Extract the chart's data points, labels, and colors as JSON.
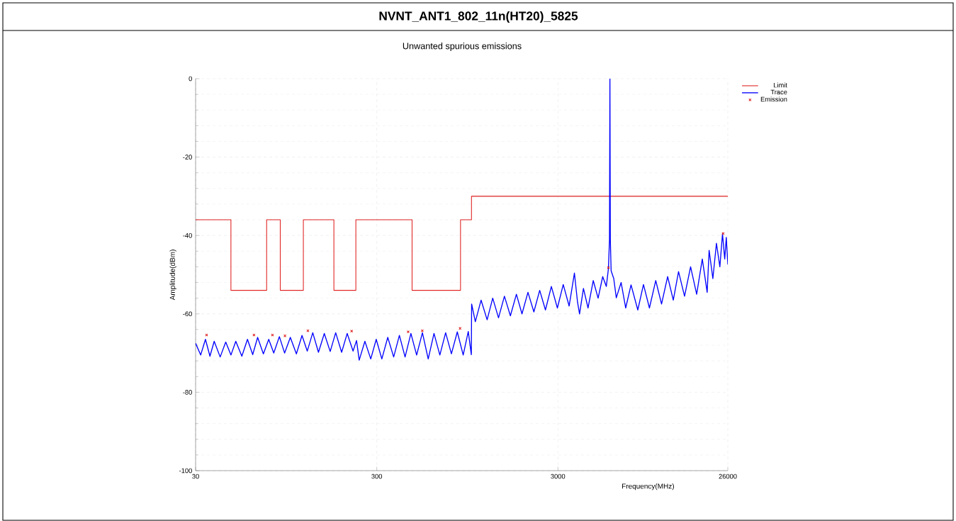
{
  "chart_data": {
    "type": "line",
    "title": "NVNT_ANT1_802_11n(HT20)_5825",
    "subtitle": "Unwanted spurious emissions",
    "xlabel": "Frequency(MHz)",
    "ylabel": "Amplitude(dBm)",
    "log": "x",
    "xlim": [
      30,
      26000
    ],
    "ylim": [
      -100,
      0
    ],
    "xticks": [
      30,
      300,
      3000,
      26000
    ],
    "yticks": [
      -100,
      -80,
      -60,
      -40,
      -20,
      0
    ],
    "grid": true,
    "legend": "top right",
    "series": [
      {
        "name": "Limit",
        "type": "step",
        "color": "#e02020",
        "x": [
          30,
          47,
          74,
          88,
          118,
          174,
          230,
          470,
          870,
          1000,
          26000
        ],
        "values": [
          -36,
          -54,
          -36,
          -54,
          -36,
          -54,
          -36,
          -54,
          -36,
          -30,
          -30
        ]
      },
      {
        "name": "Trace",
        "color": "#0000ff",
        "x": [
          30,
          32,
          34,
          36,
          38,
          41,
          44,
          47,
          50,
          54,
          58,
          62,
          66,
          71,
          76,
          81,
          87,
          93,
          100,
          108,
          116,
          124,
          133,
          143,
          154,
          166,
          178,
          192,
          206,
          222,
          232,
          240,
          258,
          278,
          298,
          320,
          345,
          372,
          400,
          430,
          463,
          498,
          536,
          577,
          621,
          669,
          720,
          775,
          835,
          900,
          960,
          998,
          1002,
          1050,
          1130,
          1220,
          1310,
          1410,
          1520,
          1640,
          1770,
          1900,
          2050,
          2210,
          2380,
          2560,
          2760,
          2980,
          3210,
          3460,
          3700,
          3850,
          3950,
          4150,
          4400,
          4700,
          5000,
          5300,
          5550,
          5700,
          5780,
          5810,
          5840,
          5900,
          6100,
          6300,
          6700,
          7100,
          7600,
          8280,
          8900,
          9600,
          10400,
          11200,
          12100,
          13000,
          13900,
          15000,
          16200,
          17500,
          18800,
          20000,
          20500,
          21500,
          22500,
          23500,
          24300,
          25000,
          25500,
          26000
        ],
        "values": [
          -67.5,
          -70.5,
          -66.5,
          -70.8,
          -67,
          -71,
          -67.2,
          -70.5,
          -67,
          -70.8,
          -66.5,
          -70.4,
          -66,
          -70.2,
          -66.5,
          -70,
          -65.8,
          -70,
          -66,
          -70.2,
          -65.5,
          -69.5,
          -64.8,
          -69.8,
          -65,
          -69.6,
          -64.8,
          -69.8,
          -65,
          -69.5,
          -66.8,
          -71.8,
          -67,
          -71.5,
          -66.5,
          -71.5,
          -66,
          -71,
          -65.5,
          -71,
          -65,
          -70.5,
          -64.8,
          -71.5,
          -65,
          -70.5,
          -64.8,
          -70.2,
          -64.6,
          -70.5,
          -64.5,
          -70.4,
          -57.5,
          -62,
          -56.5,
          -61.5,
          -56,
          -61,
          -55.5,
          -60.5,
          -55,
          -60,
          -54.5,
          -59.5,
          -54,
          -59,
          -53,
          -58.5,
          -52.5,
          -58,
          -49.6,
          -57,
          -60,
          -53.5,
          -58.5,
          -51.5,
          -56,
          -50.5,
          -53,
          -48.5,
          -41,
          0,
          -41,
          -49,
          -51,
          -55.9,
          -52,
          -58.5,
          -52.6,
          -59,
          -52.5,
          -58.5,
          -51.5,
          -57.5,
          -50.5,
          -56.5,
          -49.2,
          -55.5,
          -48,
          -55,
          -46,
          -54.5,
          -43.8,
          -51,
          -42,
          -48,
          -39.6,
          -46,
          -40.5,
          -47.4
        ]
      },
      {
        "name": "Emission",
        "type": "scatter",
        "marker": "cross",
        "color": "#e02020",
        "x": [
          34.5,
          63,
          79.7,
          93.4,
          125,
          218,
          447,
          535,
          865,
          5700,
          24500
        ],
        "values": [
          -65.4,
          -65.4,
          -65.4,
          -65.6,
          -64.3,
          -64.4,
          -64.6,
          -64.3,
          -63.7,
          -48.2,
          -39.5
        ]
      }
    ]
  }
}
